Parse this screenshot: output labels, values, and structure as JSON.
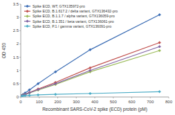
{
  "chart_data": {
    "type": "line",
    "x_label": "Recombinant SARS-CoV-2 spike (ECD) protein (pM)",
    "y_label": "OD 450",
    "x": [
      0,
      11.7,
      23.4,
      46.9,
      93.8,
      187.5,
      375,
      750
    ],
    "series": [
      {
        "name": "Spike ECD, WT, GTX135972-pro",
        "color": "#3a6cb4",
        "values": [
          0.05,
          0.09,
          0.15,
          0.27,
          0.5,
          0.95,
          1.78,
          3.1
        ]
      },
      {
        "name": "Spike ECD, B.1.617.2 / delta variant, GTX136432-pro",
        "color": "#c0504d",
        "values": [
          0.04,
          0.07,
          0.1,
          0.17,
          0.3,
          0.55,
          1.1,
          2.05
        ]
      },
      {
        "name": "Spike ECD, B.1.1.7 / alpha variant, GTX136059-pro",
        "color": "#9bbb59",
        "values": [
          0.04,
          0.06,
          0.09,
          0.15,
          0.26,
          0.47,
          0.95,
          1.75
        ]
      },
      {
        "name": "Spike ECD, B.1.351 / beta variant, GTX136061-pro",
        "color": "#8064a2",
        "values": [
          0.04,
          0.06,
          0.09,
          0.16,
          0.28,
          0.5,
          1.0,
          1.9
        ]
      },
      {
        "name": "Spike ECD, P.1 / gamma variant, GTX136091-pro",
        "color": "#4bacc6",
        "values": [
          0.03,
          0.04,
          0.05,
          0.06,
          0.08,
          0.1,
          0.13,
          0.2
        ]
      }
    ],
    "marker": "diamond",
    "legend": "upper left",
    "grid": false,
    "xlim": [
      0,
      800
    ],
    "xticks": [
      0,
      100,
      200,
      300,
      400,
      500,
      600,
      700,
      800
    ],
    "ylim": [
      0,
      3.5
    ],
    "yticks": [
      0,
      0.5,
      1,
      1.5,
      2,
      2.5,
      3,
      3.5
    ]
  }
}
